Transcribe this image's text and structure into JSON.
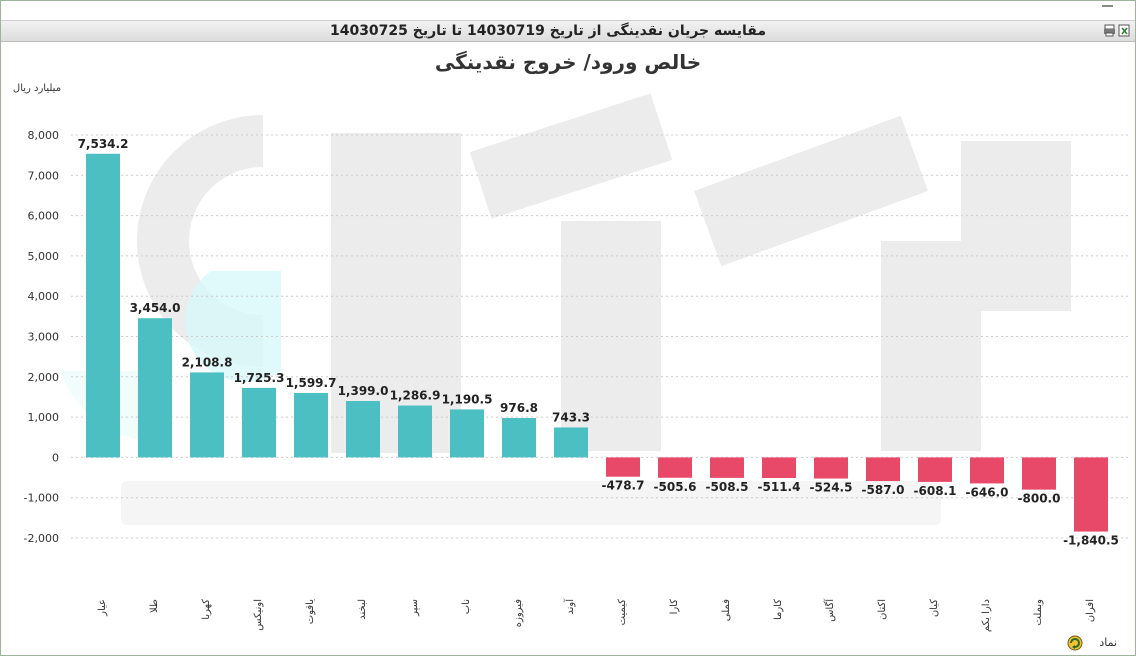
{
  "window": {
    "title": "مقایسه جریان نقدینگی از تاریخ 14030719 تا تاریخ 14030725"
  },
  "footer": {
    "label": "نماد"
  },
  "colors": {
    "positive": "#4cbfc2",
    "negative": "#e84968",
    "grid": "#cccccc",
    "watermark": "#ececec"
  },
  "chart_data": {
    "type": "bar",
    "title": "خالص ورود/ خروج نقدینگی",
    "ylabel": "میلیارد ریال",
    "ylim": [
      -2000,
      8000
    ],
    "yticks": [
      "8,000",
      "7,000",
      "6,000",
      "5,000",
      "4,000",
      "3,000",
      "2,000",
      "1,000",
      "0",
      "-1,000",
      "-2,000"
    ],
    "grid": true,
    "categories": [
      "عیار",
      "طلا",
      "کهربا",
      "اونیکس",
      "یاقوت",
      "لبخند",
      "سپر",
      "ناب",
      "فیروزه",
      "آوند",
      "کیمیت",
      "کارا",
      "فملی",
      "کارما",
      "آگاس",
      "اکتان",
      "کیان",
      "دارا یکم",
      "وبملت",
      "افران"
    ],
    "values": [
      7534.2,
      3454.0,
      2108.8,
      1725.3,
      1599.7,
      1399.0,
      1286.9,
      1190.5,
      976.8,
      743.3,
      -478.7,
      -505.6,
      -508.5,
      -511.4,
      -524.5,
      -587.0,
      -608.1,
      -646.0,
      -800.0,
      -1840.5
    ],
    "labels": [
      "7,534.2",
      "3,454.0",
      "2,108.8",
      "1,725.3",
      "1,599.7",
      "1,399.0",
      "1,286.9",
      "1,190.5",
      "976.8",
      "743.3",
      "-478.7",
      "-505.6",
      "-508.5",
      "-511.4",
      "-524.5",
      "-587.0",
      "-608.1",
      "-646.0",
      "-800.0",
      "-1,840.5"
    ]
  }
}
